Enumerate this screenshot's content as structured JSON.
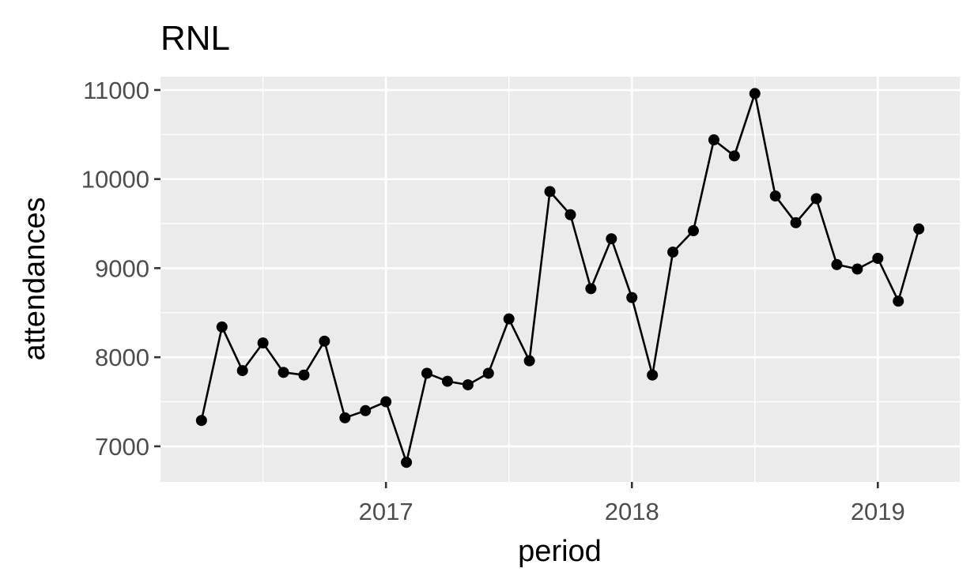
{
  "chart_data": {
    "type": "line",
    "title": "RNL",
    "xlabel": "period",
    "ylabel": "attendances",
    "x_ticks": [
      "2017",
      "2018",
      "2019"
    ],
    "y_ticks": [
      7000,
      8000,
      9000,
      10000,
      11000
    ],
    "ylim": [
      6600,
      11150
    ],
    "xlim": [
      "2016-02",
      "2019-05"
    ],
    "grid": true,
    "legend": "none",
    "series": [
      {
        "color": "#000000",
        "points": [
          {
            "x": "2016-04",
            "y": 7290
          },
          {
            "x": "2016-05",
            "y": 8340
          },
          {
            "x": "2016-06",
            "y": 7850
          },
          {
            "x": "2016-07",
            "y": 8160
          },
          {
            "x": "2016-08",
            "y": 7830
          },
          {
            "x": "2016-09",
            "y": 7800
          },
          {
            "x": "2016-10",
            "y": 8180
          },
          {
            "x": "2016-11",
            "y": 7320
          },
          {
            "x": "2016-12",
            "y": 7400
          },
          {
            "x": "2017-01",
            "y": 7500
          },
          {
            "x": "2017-02",
            "y": 6820
          },
          {
            "x": "2017-03",
            "y": 7820
          },
          {
            "x": "2017-04",
            "y": 7730
          },
          {
            "x": "2017-05",
            "y": 7690
          },
          {
            "x": "2017-06",
            "y": 7820
          },
          {
            "x": "2017-07",
            "y": 8430
          },
          {
            "x": "2017-08",
            "y": 7960
          },
          {
            "x": "2017-09",
            "y": 9860
          },
          {
            "x": "2017-10",
            "y": 9600
          },
          {
            "x": "2017-11",
            "y": 8770
          },
          {
            "x": "2017-12",
            "y": 9330
          },
          {
            "x": "2018-01",
            "y": 8670
          },
          {
            "x": "2018-02",
            "y": 7800
          },
          {
            "x": "2018-03",
            "y": 9180
          },
          {
            "x": "2018-04",
            "y": 9420
          },
          {
            "x": "2018-05",
            "y": 10440
          },
          {
            "x": "2018-06",
            "y": 10260
          },
          {
            "x": "2018-07",
            "y": 10960
          },
          {
            "x": "2018-08",
            "y": 9810
          },
          {
            "x": "2018-09",
            "y": 9510
          },
          {
            "x": "2018-10",
            "y": 9780
          },
          {
            "x": "2018-11",
            "y": 9040
          },
          {
            "x": "2018-12",
            "y": 8990
          },
          {
            "x": "2019-01",
            "y": 9110
          },
          {
            "x": "2019-02",
            "y": 8630
          },
          {
            "x": "2019-03",
            "y": 9440
          }
        ]
      }
    ]
  }
}
